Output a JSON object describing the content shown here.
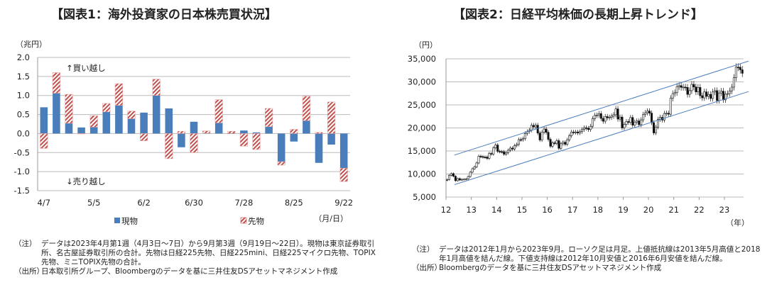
{
  "chart_data": [
    {
      "type": "bar",
      "stacked": true,
      "title": "【図表1：海外投資家の日本株売買状況】",
      "unit_label": "（兆円）",
      "x_unit_label": "（月/日）",
      "ylim": [
        -1.5,
        2.0
      ],
      "yticks": [
        "2.0",
        "1.5",
        "1.0",
        "0.5",
        "0.0",
        "-0.5",
        "-1.0",
        "-1.5"
      ],
      "ytick_values": [
        2.0,
        1.5,
        1.0,
        0.5,
        0.0,
        -0.5,
        -1.0,
        -1.5
      ],
      "grid": true,
      "tick_labels": [
        {
          "index": 0,
          "label": "4/7"
        },
        {
          "index": 4,
          "label": "5/5"
        },
        {
          "index": 8,
          "label": "6/2"
        },
        {
          "index": 12,
          "label": "6/30"
        },
        {
          "index": 16,
          "label": "7/28"
        },
        {
          "index": 20,
          "label": "8/25"
        },
        {
          "index": 24,
          "label": "9/22"
        }
      ],
      "annotations": {
        "buy": "↑買い越し",
        "sell": "↓売り越し"
      },
      "legend_placement": "bottom",
      "series": [
        {
          "name": "現物",
          "color": "#4a7ebb",
          "values": [
            0.69,
            1.06,
            0.27,
            0.16,
            0.17,
            0.57,
            0.74,
            0.39,
            0.55,
            1.0,
            0.66,
            -0.36,
            0.31,
            0.01,
            0.28,
            0.0,
            0.08,
            0.03,
            0.18,
            -0.74,
            -0.21,
            0.34,
            -0.77,
            -0.29,
            -0.91
          ]
        },
        {
          "name": "先物",
          "color": "#c0504d",
          "pattern": "hatched",
          "values": [
            -0.39,
            0.54,
            0.76,
            -0.01,
            0.3,
            0.22,
            0.57,
            0.2,
            -0.19,
            0.43,
            -0.66,
            0.06,
            -0.5,
            0.06,
            0.61,
            0.06,
            -0.33,
            -0.42,
            0.48,
            -0.09,
            0.11,
            0.64,
            0.03,
            0.83,
            -0.35
          ]
        }
      ]
    },
    {
      "type": "candlestick",
      "title": "【図表2：日経平均株価の長期上昇トレンド】",
      "unit_label": "（円）",
      "x_unit_label": "（年）",
      "ylim": [
        5000,
        35000
      ],
      "yticks": [
        "35,000",
        "30,000",
        "25,000",
        "20,000",
        "15,000",
        "10,000",
        "5,000"
      ],
      "ytick_values": [
        35000,
        30000,
        25000,
        20000,
        15000,
        10000,
        5000
      ],
      "xticks": [
        "12",
        "13",
        "14",
        "15",
        "16",
        "17",
        "18",
        "19",
        "20",
        "21",
        "22",
        "23"
      ],
      "grid": true,
      "start": "2012-01",
      "monthly_close": [
        8803,
        9723,
        10084,
        9521,
        8543,
        9007,
        8695,
        8840,
        8870,
        8928,
        9446,
        10395,
        11139,
        11559,
        12398,
        13861,
        13775,
        13677,
        13668,
        13389,
        14456,
        14328,
        15662,
        16291,
        14915,
        14841,
        14828,
        14304,
        14632,
        15162,
        15621,
        15425,
        16174,
        16414,
        17460,
        17451,
        17674,
        18798,
        19207,
        19520,
        20563,
        20236,
        20585,
        18890,
        17388,
        19083,
        19747,
        19034,
        17518,
        16027,
        16759,
        16666,
        17235,
        15576,
        16569,
        16887,
        16450,
        17425,
        18308,
        19114,
        19041,
        19119,
        18909,
        19197,
        19651,
        20033,
        19925,
        19646,
        20356,
        22012,
        22725,
        22765,
        23098,
        22068,
        21454,
        22468,
        22202,
        22305,
        22554,
        22865,
        24120,
        21920,
        22351,
        20015,
        20773,
        21385,
        21206,
        22259,
        20601,
        21276,
        21522,
        20704,
        21756,
        22927,
        23294,
        23657,
        23205,
        21143,
        18917,
        20194,
        21878,
        22288,
        21710,
        23140,
        23185,
        22977,
        26434,
        27444,
        27663,
        28966,
        29179,
        28813,
        28860,
        28792,
        27284,
        28090,
        29453,
        28893,
        27822,
        28792,
        27002,
        26527,
        27821,
        26848,
        27280,
        26393,
        27802,
        28092,
        25937,
        27587,
        27969,
        26095,
        27327,
        27446,
        28041,
        28856,
        30888,
        33189,
        33172,
        32619,
        31858
      ],
      "trend_lines": [
        {
          "name": "上値抵抗線",
          "color": "#4a7ebb",
          "points": [
            {
              "date": "2013-05",
              "value": 15942
            },
            {
              "date": "2018-01",
              "value": 24129
            }
          ]
        },
        {
          "name": "下値支持線",
          "color": "#4a7ebb",
          "points": [
            {
              "date": "2012-10",
              "value": 8488
            },
            {
              "date": "2016-06",
              "value": 14864
            }
          ]
        }
      ],
      "candle_color": "#111111"
    }
  ],
  "notes": {
    "left": [
      {
        "tag": "（注）",
        "text": "データは2023年4月第1週（4月3日～7日）から9月第3週（9月19日～22日）。現物は東京証券取引所、名古屋証券取引所の合計。先物は日経225先物、日経225mini、日経225マイクロ先物、TOPIX先物、ミニTOPIX先物の合計。"
      },
      {
        "tag": "（出所）",
        "text": "日本取引所グループ、Bloombergのデータを基に三井住友DSアセットマネジメント作成"
      }
    ],
    "right": [
      {
        "tag": "（注）",
        "text": "データは2012年1月から2023年9月。ローソク足は月足。上値抵抗線は2013年5月高値と2018年1月高値を結んだ線。下値支持線は2012年10月安値と2016年6月安値を結んだ線。"
      },
      {
        "tag": "（出所）",
        "text": "Bloombergのデータを基に三井住友DSアセットマネジメント作成"
      }
    ]
  }
}
